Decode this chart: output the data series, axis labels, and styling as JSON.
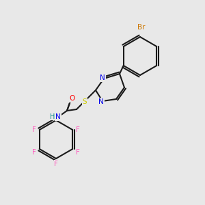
{
  "background_color": "#e8e8e8",
  "bond_color": "#1a1a1a",
  "atom_colors": {
    "N": "#0000ee",
    "O": "#ff0000",
    "S": "#cccc00",
    "F": "#ff55bb",
    "Br": "#cc7700",
    "H": "#008888",
    "C": "#1a1a1a"
  },
  "lw": 1.5,
  "lw2": 1.3
}
